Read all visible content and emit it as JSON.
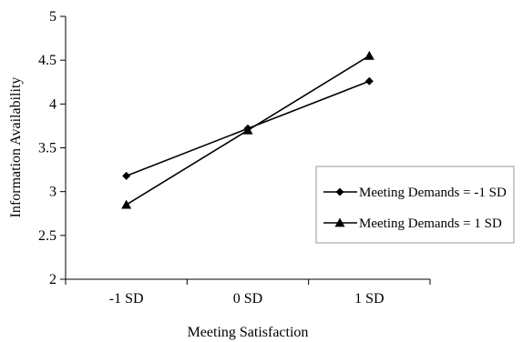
{
  "chart_data": {
    "type": "line",
    "categories": [
      "-1 SD",
      "0 SD",
      "1 SD"
    ],
    "series": [
      {
        "name": "Meeting Demands = -1 SD",
        "marker": "diamond",
        "values": [
          3.18,
          3.72,
          4.26
        ]
      },
      {
        "name": "Meeting Demands = 1 SD",
        "marker": "triangle",
        "values": [
          2.85,
          3.7,
          4.55
        ]
      }
    ],
    "xlabel": "Meeting Satisfaction",
    "ylabel": "Information Availability",
    "ylim": [
      2,
      5
    ],
    "yticks": [
      "2",
      "2.5",
      "3",
      "3.5",
      "4",
      "4.5",
      "5"
    ],
    "grid": false,
    "legend_position": "right",
    "colors": {
      "line": "#000000",
      "legend_border": "#999999"
    }
  }
}
